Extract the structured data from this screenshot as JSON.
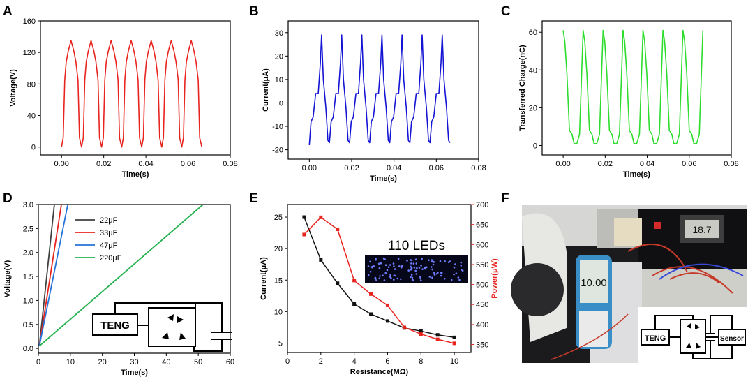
{
  "panel_letters": {
    "A": "A",
    "B": "B",
    "C": "C",
    "D": "D",
    "E": "E",
    "F": "F"
  },
  "chart_data": [
    {
      "panel": "A",
      "type": "line",
      "title": "",
      "xlabel": "Time(s)",
      "ylabel": "Voltage(V)",
      "xlim": [
        -0.01,
        0.08
      ],
      "ylim": [
        -10,
        160
      ],
      "xticks": [
        0.0,
        0.02,
        0.04,
        0.06,
        0.08
      ],
      "xtick_labels": [
        "0.00",
        "0.02",
        "0.04",
        "0.06",
        "0.08"
      ],
      "yticks": [
        0,
        40,
        80,
        120,
        160
      ],
      "ytick_labels": [
        "0",
        "40",
        "80",
        "120",
        "160"
      ],
      "color": "#e8241f",
      "series": [
        {
          "name": "Voltage",
          "period": 0.0095,
          "cycles": 7,
          "t0": 0.0,
          "shape_t": [
            0,
            0.0008,
            0.0015,
            0.0022,
            0.0032,
            0.0045,
            0.0058,
            0.0068,
            0.0078,
            0.0085,
            0.0095
          ],
          "shape_v": [
            0,
            12,
            85,
            108,
            122,
            135,
            122,
            108,
            85,
            12,
            0
          ]
        }
      ]
    },
    {
      "panel": "B",
      "type": "line",
      "title": "",
      "xlabel": "Time(s)",
      "ylabel": "Current(μA)",
      "xlim": [
        -0.01,
        0.08
      ],
      "ylim": [
        -24,
        35
      ],
      "xticks": [
        0.0,
        0.02,
        0.04,
        0.06,
        0.08
      ],
      "xtick_labels": [
        "0.00",
        "0.02",
        "0.04",
        "0.06",
        "0.08"
      ],
      "yticks": [
        -20,
        -10,
        0,
        10,
        20,
        30
      ],
      "ytick_labels": [
        "-20",
        "-10",
        "0",
        "10",
        "20",
        "30"
      ],
      "color": "#1414d4",
      "series": [
        {
          "name": "Current",
          "period": 0.0095,
          "cycles": 7,
          "t0": 0.0,
          "shape_t": [
            0,
            0.0008,
            0.0018,
            0.003,
            0.0042,
            0.0052,
            0.0058,
            0.0066,
            0.0078,
            0.0088,
            0.0095
          ],
          "shape_v": [
            -18,
            -8,
            -6,
            4,
            4,
            17,
            29,
            10,
            -2,
            -16,
            -17
          ]
        }
      ]
    },
    {
      "panel": "C",
      "type": "line",
      "title": "",
      "xlabel": "Time(s)",
      "ylabel": "Transferred Charge(nC)",
      "xlim": [
        -0.01,
        0.08
      ],
      "ylim": [
        -5,
        66
      ],
      "xticks": [
        0.0,
        0.02,
        0.04,
        0.06,
        0.08
      ],
      "xtick_labels": [
        "0.00",
        "0.02",
        "0.04",
        "0.06",
        "0.08"
      ],
      "yticks": [
        0,
        20,
        40,
        60
      ],
      "ytick_labels": [
        "0",
        "20",
        "40",
        "60"
      ],
      "color": "#2ddc2d",
      "series": [
        {
          "name": "Charge",
          "period": 0.0095,
          "cycles": 7,
          "t0": 0.0,
          "shape_t": [
            0,
            0.0008,
            0.0018,
            0.003,
            0.0042,
            0.0052,
            0.0065,
            0.0078,
            0.0088,
            0.0095
          ],
          "shape_v": [
            61,
            55,
            38,
            8,
            6,
            1,
            1,
            6,
            38,
            61
          ]
        }
      ]
    },
    {
      "panel": "D",
      "type": "line",
      "title": "",
      "xlabel": "Time(s)",
      "ylabel": "Voltage(V)",
      "xlim": [
        0,
        60
      ],
      "ylim": [
        -0.1,
        3.0
      ],
      "xticks": [
        0,
        10,
        20,
        30,
        40,
        50,
        60
      ],
      "xtick_labels": [
        "0",
        "10",
        "20",
        "30",
        "40",
        "50",
        "60"
      ],
      "yticks": [
        0.0,
        0.5,
        1.0,
        1.5,
        2.0,
        2.5,
        3.0
      ],
      "ytick_labels": [
        "0.0",
        "0.5",
        "1.0",
        "1.5",
        "2.0",
        "2.5",
        "3.0"
      ],
      "legend": "top-center",
      "series": [
        {
          "name": "22μF",
          "color": "#404040",
          "x": [
            0.3,
            5.0
          ],
          "y": [
            0.05,
            3.0
          ]
        },
        {
          "name": "33μF",
          "color": "#e8241f",
          "x": [
            0.3,
            7.2
          ],
          "y": [
            0.05,
            3.0
          ]
        },
        {
          "name": "47μF",
          "color": "#2473d8",
          "x": [
            0.3,
            9.2
          ],
          "y": [
            0.05,
            3.0
          ]
        },
        {
          "name": "220μF",
          "color": "#22b14c",
          "x": [
            0.3,
            51.5
          ],
          "y": [
            0.05,
            3.0
          ]
        }
      ]
    },
    {
      "panel": "E",
      "type": "line",
      "title": "",
      "xlabel": "Resistance(MΩ)",
      "ylabel": "Current(μA)",
      "ylabel_right": "Power(μW)",
      "xlim": [
        0,
        11
      ],
      "ylim": [
        3.5,
        27
      ],
      "ylim_right": [
        330,
        700
      ],
      "xticks": [
        0,
        2,
        4,
        6,
        8,
        10
      ],
      "xtick_labels": [
        "0",
        "2",
        "4",
        "6",
        "8",
        "10"
      ],
      "yticks": [
        5,
        10,
        15,
        20,
        25
      ],
      "ytick_labels": [
        "5",
        "10",
        "15",
        "20",
        "25"
      ],
      "yticks_right": [
        350,
        400,
        450,
        500,
        550,
        600,
        650,
        700
      ],
      "ytick_labels_right": [
        "350",
        "400",
        "450",
        "500",
        "550",
        "600",
        "650",
        "700"
      ],
      "series": [
        {
          "name": "Current",
          "axis": "left",
          "color": "#111111",
          "x": [
            1,
            2,
            3,
            4,
            5,
            6,
            7,
            8,
            9,
            10
          ],
          "y": [
            25,
            18.2,
            14.5,
            11.2,
            9.6,
            8.5,
            7.4,
            6.9,
            6.3,
            5.9
          ]
        },
        {
          "name": "Power",
          "axis": "right",
          "color": "#e8241f",
          "x": [
            1,
            2,
            3,
            4,
            5,
            6,
            7,
            8,
            9,
            10
          ],
          "y": [
            625,
            668,
            638,
            510,
            476,
            448,
            393,
            376,
            363,
            353
          ]
        }
      ]
    }
  ],
  "annotations": {
    "leds_label": "110 LEDs",
    "teng_label": "TENG",
    "sensor_label": "Sensor",
    "meter_reading": "10.00",
    "display_reading": "18.7"
  }
}
